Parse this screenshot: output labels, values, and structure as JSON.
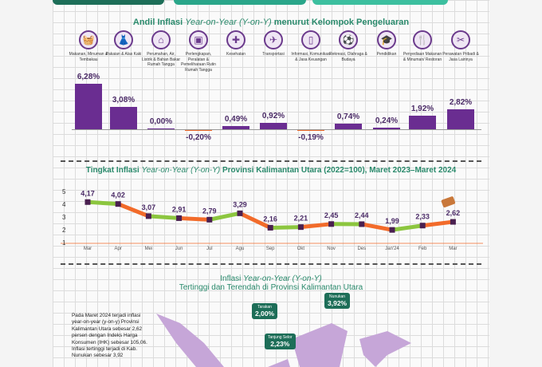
{
  "section1": {
    "title_a": "Andil Inflasi ",
    "title_i": "Year-on-Year (Y-on-Y)",
    "title_b": " menurut Kelompok Pengeluaran"
  },
  "groups": [
    {
      "icon": "food-basket-icon",
      "glyph": "🧺",
      "label": "Makanan, Minuman & Tembakau",
      "value": 6.28,
      "text": "6,28%"
    },
    {
      "icon": "dress-icon",
      "glyph": "👗",
      "label": "Pakaian & Alas Kaki",
      "value": 3.08,
      "text": "3,08%"
    },
    {
      "icon": "house-icon",
      "glyph": "⌂",
      "label": "Perumahan, Air, Listrik & Bahan Bakar Rumah Tangga",
      "value": 0.0,
      "text": "0,00%"
    },
    {
      "icon": "appliance-icon",
      "glyph": "▣",
      "label": "Perlengkapan, Peralatan & Pemeliharaan Rutin Rumah Tangga",
      "value": -0.2,
      "text": "-0,20%"
    },
    {
      "icon": "medical-kit-icon",
      "glyph": "✚",
      "label": "Kesehatan",
      "value": 0.49,
      "text": "0,49%"
    },
    {
      "icon": "airplane-icon",
      "glyph": "✈",
      "label": "Transportasi",
      "value": 0.92,
      "text": "0,92%"
    },
    {
      "icon": "smartphone-icon",
      "glyph": "▯",
      "label": "Informasi, Komunikasi & Jasa Keuangan",
      "value": -0.19,
      "text": "-0,19%"
    },
    {
      "icon": "soccer-player-icon",
      "glyph": "⚽",
      "label": "Rekreasi, Olahraga & Budaya",
      "value": 0.74,
      "text": "0,74%"
    },
    {
      "icon": "graduation-cap-icon",
      "glyph": "🎓",
      "label": "Pendidikan",
      "value": 0.24,
      "text": "0,24%"
    },
    {
      "icon": "restaurant-icon",
      "glyph": "🍴",
      "label": "Penyediaan Makanan & Minuman/ Restoran",
      "value": 1.92,
      "text": "1,92%"
    },
    {
      "icon": "tools-icon",
      "glyph": "✂",
      "label": "Perawatan Pribadi & Jasa Lainnya",
      "value": 2.82,
      "text": "2,82%"
    }
  ],
  "section2": {
    "title_a": "Tingkat Inflasi ",
    "title_i": "Year-on-Year (Y-on-Y)",
    "title_b": " Provinsi Kalimantan Utara (2022=100), Maret 2023–Maret 2024"
  },
  "chart_data": {
    "type": "line",
    "title": "Tingkat Inflasi Year-on-Year (Y-on-Y) Provinsi Kalimantan Utara (2022=100), Maret 2023–Maret 2024",
    "categories": [
      "Mar",
      "Apr",
      "Mei",
      "Jun",
      "Jul",
      "Agu",
      "Sep",
      "Okt",
      "Nov",
      "Des",
      "Jan'24",
      "Feb",
      "Mar"
    ],
    "values": [
      4.17,
      4.02,
      3.07,
      2.91,
      2.79,
      3.29,
      2.16,
      2.21,
      2.45,
      2.44,
      1.99,
      2.33,
      2.62
    ],
    "labels": [
      "4,17",
      "4,02",
      "3,07",
      "2,91",
      "2,79",
      "3,29",
      "2,16",
      "2,21",
      "2,45",
      "2,44",
      "1,99",
      "2,33",
      "2,62"
    ],
    "yticks": [
      "1",
      "2",
      "3",
      "4",
      "5"
    ],
    "ylim": [
      1,
      5
    ],
    "colors": {
      "green": "#8cc63f",
      "orange": "#f26b2a",
      "marker": "#4a2050"
    }
  },
  "section3": {
    "line1_a": "Inflasi ",
    "line1_i": "Year-on-Year (Y-on-Y)",
    "line2": "Tertinggi dan Terendah di Provinsi Kalimantan Utara"
  },
  "paragraph": "Pada Maret 2024 terjadi inflasi year-on-year (y-on-y) Provinsi Kalimantan Utara sebesar 2,62 persen dengan Indeks Harga Konsumen (IHK) sebesar 105,06. Inflasi tertinggi terjadi di Kab. Nunukan sebesar 3,92",
  "callouts": [
    {
      "name": "Tarakan",
      "value": "2,00%"
    },
    {
      "name": "Tanjung Selor",
      "value": "2,23%"
    },
    {
      "name": "Nunukan",
      "value": "3,92%"
    }
  ]
}
